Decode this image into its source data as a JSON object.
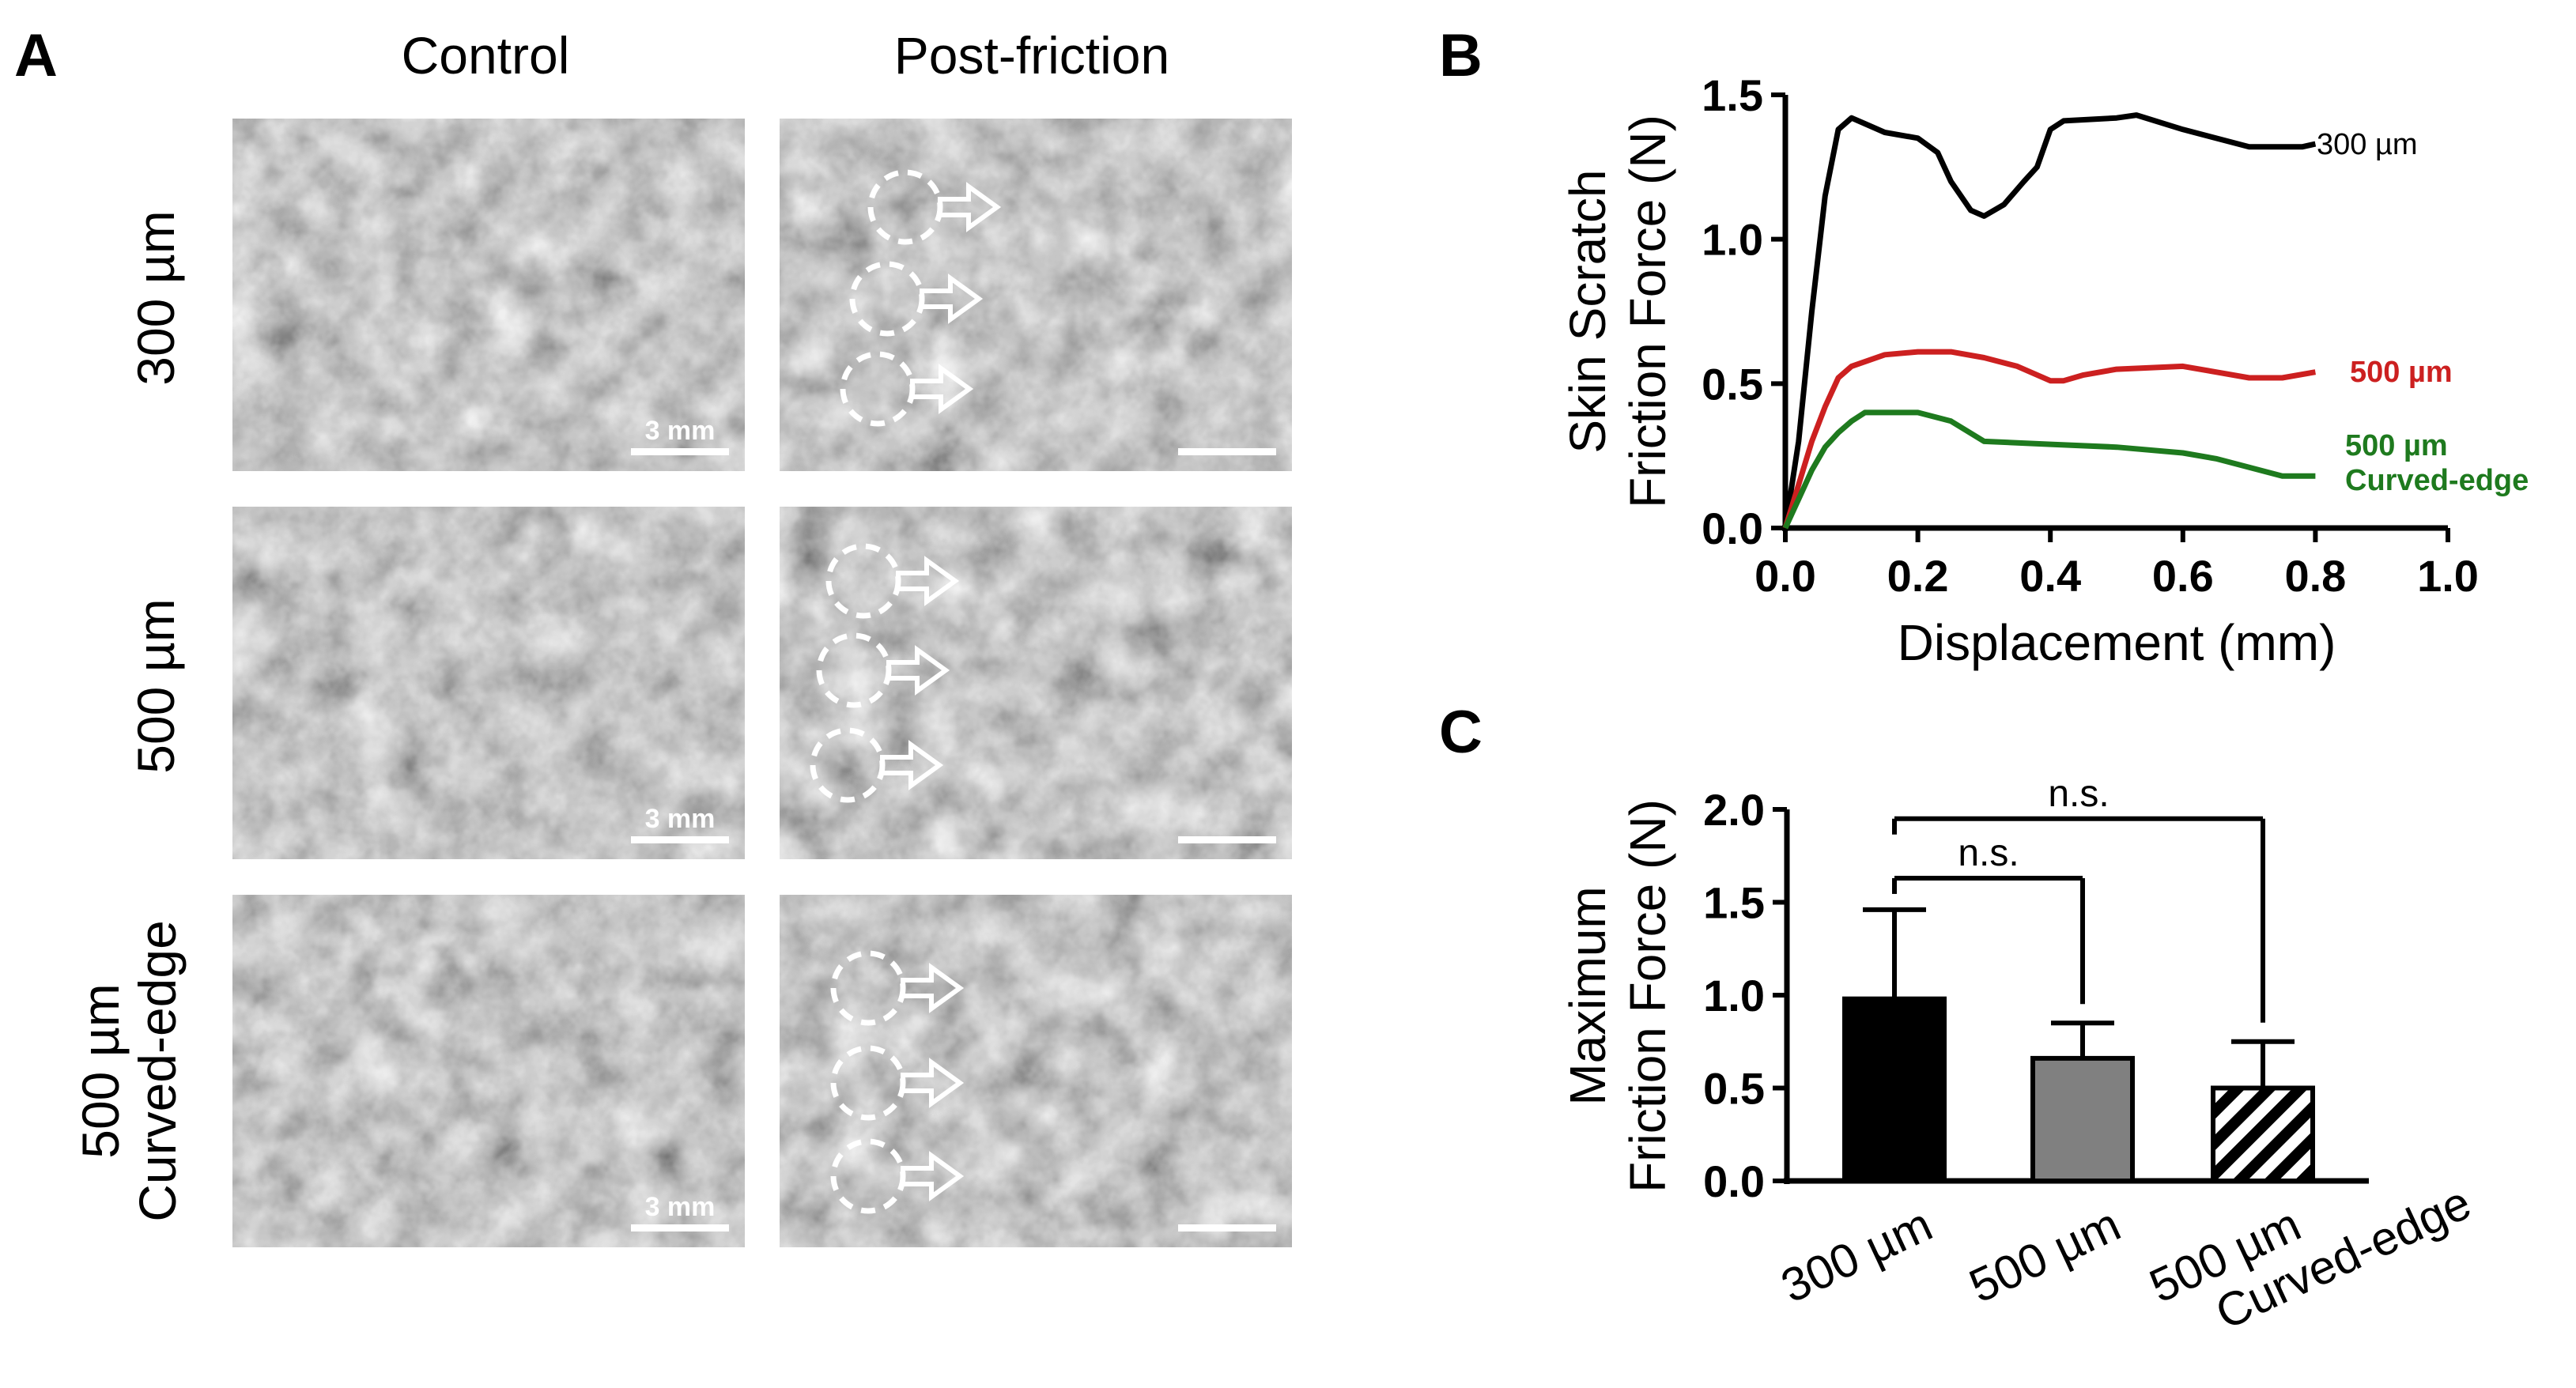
{
  "panel_labels": {
    "a": "A",
    "b": "B",
    "c": "C"
  },
  "panel_a": {
    "column_headers": [
      "Control",
      "Post-friction"
    ],
    "rows": [
      {
        "label_lines": [
          "300 µm"
        ]
      },
      {
        "label_lines": [
          "500 µm"
        ]
      },
      {
        "label_lines": [
          "500 µm",
          "Curved-edge"
        ]
      }
    ],
    "scale_bar_label": "3 mm"
  },
  "chart_data": [
    {
      "type": "line",
      "ylabel_lines": [
        "Skin Scratch",
        "Friction Force (N)"
      ],
      "xlabel": "Displacement (mm)",
      "xlim": [
        0.0,
        1.0
      ],
      "ylim": [
        0.0,
        1.5
      ],
      "xticks": [
        "0.0",
        "0.2",
        "0.4",
        "0.6",
        "0.8",
        "1.0"
      ],
      "yticks": [
        "0.0",
        "0.5",
        "1.0",
        "1.5"
      ],
      "series": [
        {
          "label_lines": [
            "300 µm"
          ],
          "color": "#000000",
          "x": [
            0.0,
            0.02,
            0.04,
            0.06,
            0.08,
            0.1,
            0.12,
            0.15,
            0.2,
            0.23,
            0.25,
            0.28,
            0.3,
            0.33,
            0.36,
            0.38,
            0.4,
            0.42,
            0.5,
            0.53,
            0.6,
            0.7,
            0.78,
            0.8
          ],
          "y": [
            0.0,
            0.3,
            0.75,
            1.15,
            1.38,
            1.42,
            1.4,
            1.37,
            1.35,
            1.3,
            1.2,
            1.1,
            1.08,
            1.12,
            1.2,
            1.25,
            1.38,
            1.41,
            1.42,
            1.43,
            1.38,
            1.32,
            1.32,
            1.33
          ]
        },
        {
          "label_lines": [
            "500 µm"
          ],
          "color": "#cc2020",
          "x": [
            0.0,
            0.02,
            0.04,
            0.06,
            0.08,
            0.1,
            0.15,
            0.2,
            0.25,
            0.3,
            0.35,
            0.4,
            0.42,
            0.45,
            0.5,
            0.6,
            0.65,
            0.7,
            0.75,
            0.8
          ],
          "y": [
            0.0,
            0.15,
            0.3,
            0.42,
            0.52,
            0.56,
            0.6,
            0.61,
            0.61,
            0.59,
            0.56,
            0.51,
            0.51,
            0.53,
            0.55,
            0.56,
            0.54,
            0.52,
            0.52,
            0.54
          ]
        },
        {
          "label_lines": [
            "500 µm",
            "Curved-edge"
          ],
          "color": "#1e7a1e",
          "x": [
            0.0,
            0.02,
            0.04,
            0.06,
            0.08,
            0.1,
            0.12,
            0.15,
            0.2,
            0.25,
            0.3,
            0.4,
            0.5,
            0.6,
            0.65,
            0.7,
            0.75,
            0.8
          ],
          "y": [
            0.0,
            0.1,
            0.2,
            0.28,
            0.33,
            0.37,
            0.4,
            0.4,
            0.4,
            0.37,
            0.3,
            0.29,
            0.28,
            0.26,
            0.24,
            0.21,
            0.18,
            0.18
          ]
        }
      ]
    },
    {
      "type": "bar",
      "ylabel_lines": [
        "Maximum",
        "Friction Force (N)"
      ],
      "ylim": [
        0.0,
        2.0
      ],
      "yticks": [
        "0.0",
        "0.5",
        "1.0",
        "1.5",
        "2.0"
      ],
      "categories": [
        {
          "label_lines": [
            "300 µm"
          ]
        },
        {
          "label_lines": [
            "500 µm"
          ]
        },
        {
          "label_lines": [
            "500 µm",
            "Curved-edge"
          ]
        }
      ],
      "values": [
        0.98,
        0.66,
        0.5
      ],
      "errors": [
        0.48,
        0.19,
        0.25
      ],
      "fills": [
        "solid-black",
        "solid-gray",
        "hatched"
      ],
      "colors": {
        "black": "#000000",
        "gray": "#808080"
      },
      "significance": [
        {
          "from": 0,
          "to": 1,
          "label": "n.s.",
          "y": 1.63
        },
        {
          "from": 0,
          "to": 2,
          "label": "n.s.",
          "y": 1.95
        }
      ]
    }
  ]
}
